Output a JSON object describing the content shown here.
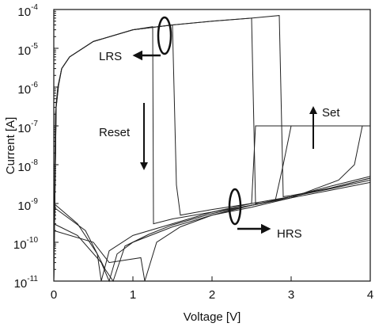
{
  "chart_data": {
    "type": "line",
    "xlabel": "Voltage [V]",
    "ylabel": "Current [A]",
    "yscale": "log",
    "xlim": [
      0,
      4
    ],
    "ylim": [
      1e-11,
      0.0001
    ],
    "xticks": [
      0,
      1,
      2,
      3,
      4
    ],
    "yticks": [
      {
        "value": 1e-11,
        "label": "10",
        "exponent": "-11"
      },
      {
        "value": 1e-10,
        "label": "10",
        "exponent": "-10"
      },
      {
        "value": 1e-09,
        "label": "10",
        "exponent": "-9"
      },
      {
        "value": 1e-08,
        "label": "10",
        "exponent": "-8"
      },
      {
        "value": 1e-07,
        "label": "10",
        "exponent": "-7"
      },
      {
        "value": 1e-06,
        "label": "10",
        "exponent": "-6"
      },
      {
        "value": 1e-05,
        "label": "10",
        "exponent": "-5"
      },
      {
        "value": 0.0001,
        "label": "10",
        "exponent": "-4"
      }
    ],
    "annotations": [
      "LRS",
      "HRS",
      "Reset",
      "Set"
    ],
    "series": [
      {
        "color": "#222",
        "x": [
          0,
          0.02,
          0.05,
          0.1,
          0.2,
          0.5,
          1.0,
          1.25,
          1.26,
          1.5,
          2.0,
          2.5,
          3.0,
          3.5,
          4.0
        ],
        "values": [
          1e-11,
          2e-07,
          1e-06,
          3e-06,
          6e-06,
          1.5e-05,
          3e-05,
          3.6e-05,
          3e-10,
          4e-10,
          6e-10,
          9e-10,
          1.4e-09,
          2.2e-09,
          3.5e-09
        ]
      },
      {
        "color": "#222",
        "x": [
          0,
          0.03,
          0.06,
          0.1,
          0.2,
          0.5,
          1.0,
          1.5,
          1.55,
          1.6,
          2.0,
          2.5,
          3.0,
          3.5,
          4.0
        ],
        "values": [
          1e-11,
          4e-07,
          1.2e-06,
          3e-06,
          6e-06,
          1.5e-05,
          3e-05,
          4e-05,
          3e-09,
          5e-10,
          7e-10,
          1e-09,
          1.5e-09,
          2.5e-09,
          4.5e-09
        ]
      },
      {
        "color": "#222",
        "x": [
          0,
          0.03,
          0.06,
          0.1,
          0.2,
          0.5,
          1.0,
          1.5,
          2.0,
          2.5,
          2.55,
          2.6,
          3.0,
          3.5,
          4.0
        ],
        "values": [
          1e-11,
          3e-07,
          1.1e-06,
          3e-06,
          6e-06,
          1.5e-05,
          3e-05,
          4e-05,
          5e-05,
          6e-05,
          1e-09,
          1e-09,
          1.5e-09,
          2.4e-09,
          4e-09
        ]
      },
      {
        "color": "#222",
        "x": [
          0,
          0.03,
          0.06,
          0.1,
          0.2,
          0.5,
          1.0,
          1.5,
          2.0,
          2.5,
          2.85,
          2.9,
          3.0,
          3.5,
          4.0
        ],
        "values": [
          1e-11,
          3e-07,
          1.1e-06,
          3e-06,
          6e-06,
          1.5e-05,
          3e-05,
          4e-05,
          5e-05,
          6e-05,
          7e-05,
          1.5e-09,
          1.6e-09,
          2.5e-09,
          4.5e-09
        ]
      },
      {
        "color": "#222",
        "x": [
          0,
          0.3,
          0.55,
          0.6,
          0.7,
          1.0,
          1.5,
          2.0,
          2.5,
          2.55,
          4.0
        ],
        "values": [
          1e-09,
          3e-10,
          5e-11,
          1e-11,
          6e-11,
          1.5e-10,
          3e-10,
          6e-10,
          1e-09,
          1e-07,
          1e-07
        ]
      },
      {
        "color": "#222",
        "x": [
          0,
          0.3,
          0.6,
          0.7,
          0.8,
          1.0,
          1.5,
          2.0,
          2.5,
          3.0,
          3.6,
          3.8,
          3.9,
          4.0
        ],
        "values": [
          3e-10,
          1.5e-10,
          3e-11,
          1e-11,
          5e-11,
          1e-10,
          2.5e-10,
          5e-10,
          8e-10,
          1.4e-09,
          4e-09,
          1e-08,
          1e-07,
          1e-07
        ]
      },
      {
        "color": "#222",
        "x": [
          0,
          0.4,
          0.65,
          0.75,
          0.9,
          1.2,
          1.5,
          2.0,
          2.5,
          2.8,
          2.9,
          3.0,
          4.0
        ],
        "values": [
          8e-10,
          2e-10,
          2e-11,
          1e-11,
          8e-11,
          1.6e-10,
          2.8e-10,
          5.5e-10,
          9e-10,
          1.2e-09,
          1e-08,
          1e-07,
          1e-07
        ]
      },
      {
        "color": "#222",
        "x": [
          0,
          0.5,
          0.7,
          1.1,
          1.15,
          1.3,
          1.6,
          2.0,
          2.5,
          3.0,
          3.5,
          4.0
        ],
        "values": [
          2e-10,
          1e-10,
          3e-11,
          4e-11,
          1e-11,
          1e-10,
          2.5e-10,
          5e-10,
          9e-10,
          1.5e-09,
          2.8e-09,
          5e-09
        ]
      }
    ]
  }
}
